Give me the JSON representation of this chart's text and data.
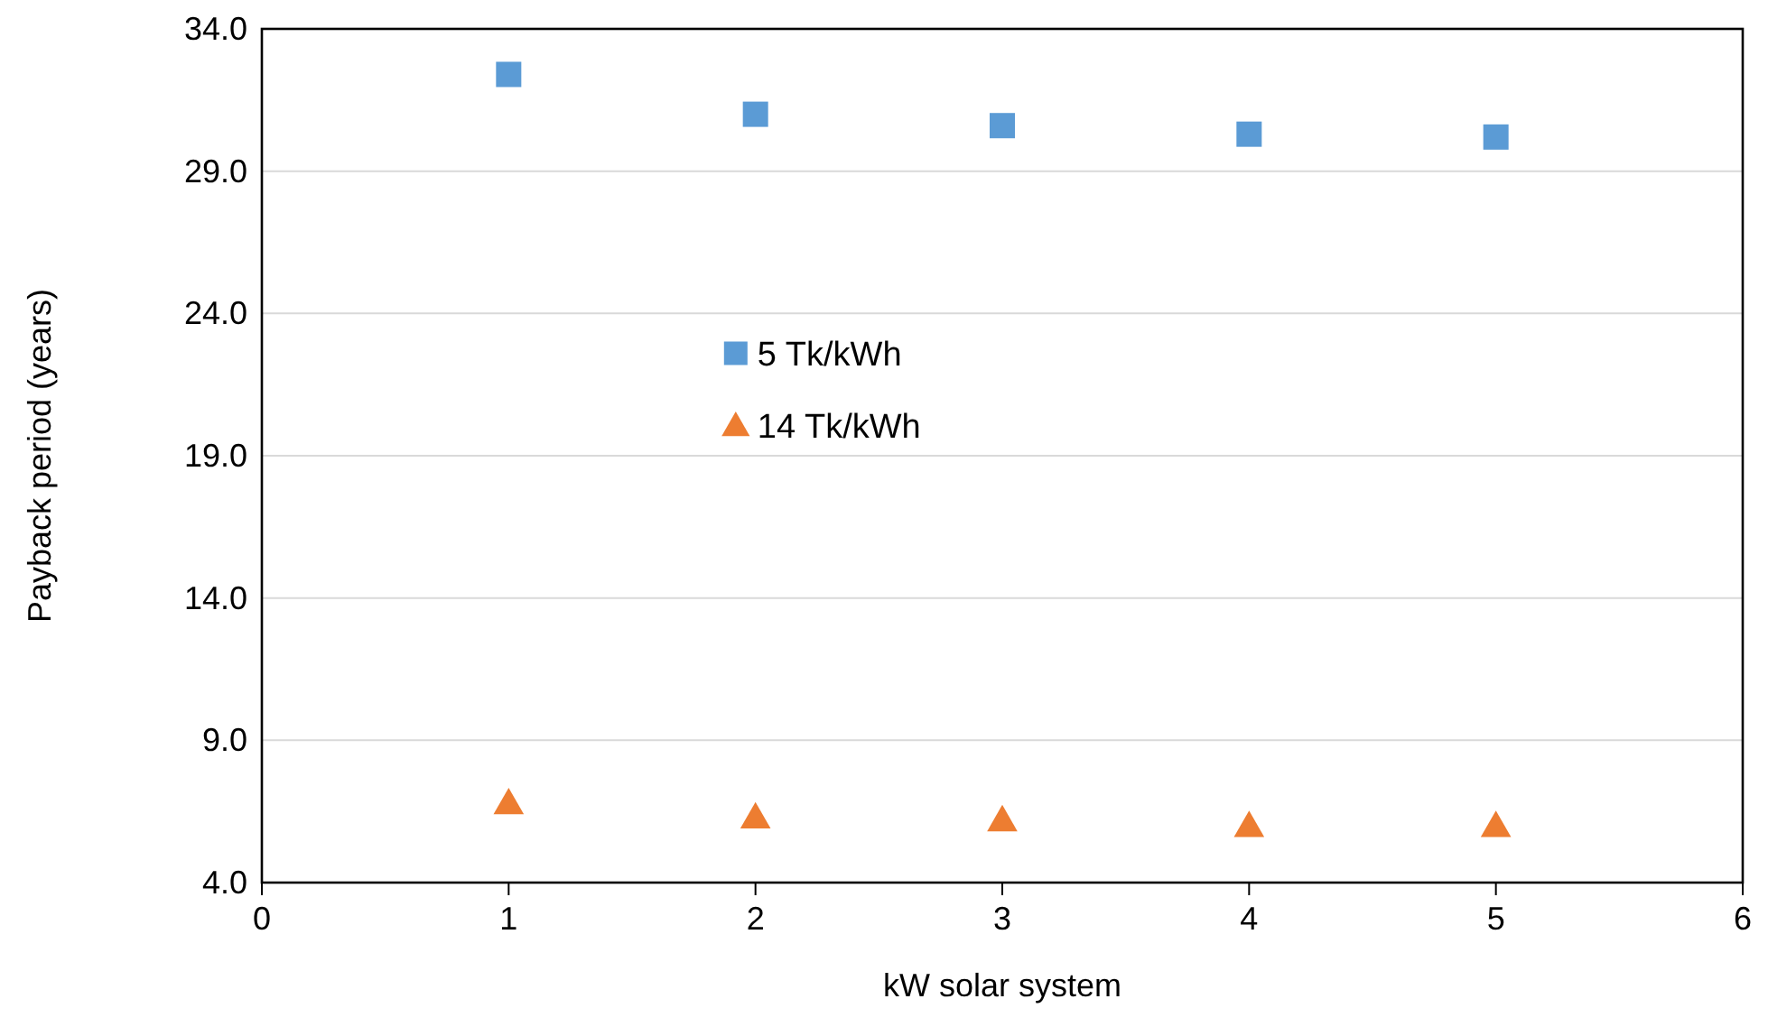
{
  "chart_data": {
    "type": "scatter",
    "xlabel": "kW solar system",
    "ylabel": "Payback period (years)",
    "x": [
      1,
      2,
      3,
      4,
      5
    ],
    "series": [
      {
        "name": "5 Tk/kWh",
        "color": "#5b9bd5",
        "marker": "square",
        "values": [
          32.4,
          31.0,
          30.6,
          30.3,
          30.2
        ]
      },
      {
        "name": "14 Tk/kWh",
        "color": "#ed7d31",
        "marker": "triangle",
        "values": [
          6.8,
          6.3,
          6.2,
          6.0,
          6.0
        ]
      }
    ],
    "xlim": [
      0,
      6
    ],
    "xticks": [
      0,
      1,
      2,
      3,
      4,
      5,
      6
    ],
    "ylim": [
      4,
      34
    ],
    "yticks": [
      {
        "value": 4,
        "label": "4.0"
      },
      {
        "value": 9,
        "label": "9.0"
      },
      {
        "value": 14,
        "label": "14.0"
      },
      {
        "value": 19,
        "label": "19.0"
      },
      {
        "value": 24,
        "label": "24.0"
      },
      {
        "value": 29,
        "label": "29.0"
      },
      {
        "value": 34,
        "label": "34.0"
      }
    ],
    "grid": "y",
    "legend": "center"
  }
}
